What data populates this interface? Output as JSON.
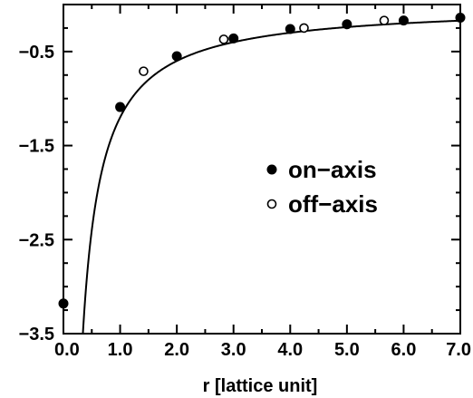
{
  "chart_data": {
    "type": "scatter",
    "title": "",
    "xlabel": "r [lattice unit]",
    "ylabel": "",
    "xlim": [
      0.0,
      7.0
    ],
    "ylim": [
      -3.5,
      0.0
    ],
    "grid": false,
    "legend_position": "center-right",
    "x_ticks": [
      "0.0",
      "1.0",
      "2.0",
      "3.0",
      "4.0",
      "5.0",
      "6.0",
      "7.0"
    ],
    "y_ticks": [
      "-0.5",
      "-1.5",
      "-2.5",
      "-3.5"
    ],
    "series": [
      {
        "name": "on-axis",
        "marker": "filled-circle",
        "points": [
          [
            0.0,
            -3.18
          ],
          [
            1.0,
            -1.09
          ],
          [
            2.0,
            -0.55
          ],
          [
            3.0,
            -0.36
          ],
          [
            4.0,
            -0.26
          ],
          [
            5.0,
            -0.21
          ],
          [
            6.0,
            -0.17
          ],
          [
            7.0,
            -0.14
          ]
        ]
      },
      {
        "name": "off-axis",
        "marker": "open-circle",
        "points": [
          [
            1.414,
            -0.71
          ],
          [
            2.828,
            -0.37
          ],
          [
            4.243,
            -0.25
          ],
          [
            5.657,
            -0.17
          ]
        ]
      }
    ],
    "fit_curve": {
      "style": "solid-line",
      "formula": "-1.2/r - 0.0"
    }
  }
}
